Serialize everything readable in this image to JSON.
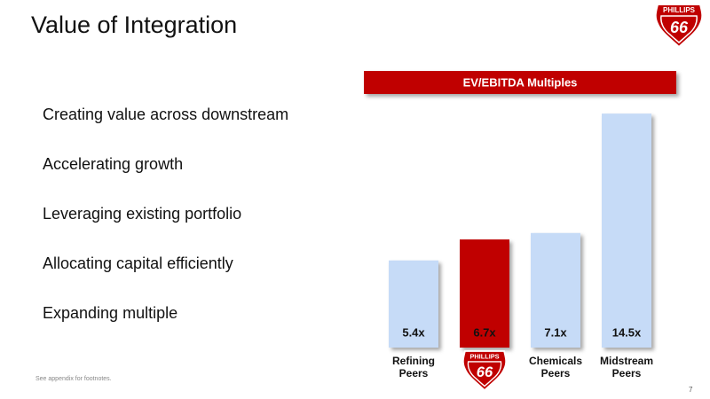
{
  "slide": {
    "title": "Value of Integration",
    "bullets": [
      "Creating value across downstream",
      "Accelerating growth",
      "Leveraging existing portfolio",
      "Allocating capital efficiently",
      "Expanding multiple"
    ],
    "logo": {
      "name": "PHILLIPS",
      "number": "66"
    },
    "footnote": "See appendix for footnotes.",
    "page_number": 7
  },
  "chart_data": {
    "type": "bar",
    "title": "EV/EBITDA Multiples",
    "categories": [
      "Refining Peers",
      null,
      "Chemicals Peers",
      "Midstream Peers"
    ],
    "values": [
      5.4,
      6.7,
      7.1,
      14.5
    ],
    "value_labels": [
      "5.4x",
      "6.7x",
      "7.1x",
      "14.5x"
    ],
    "colors": [
      "#c6dbf7",
      "#c00000",
      "#c6dbf7",
      "#c6dbf7"
    ]
  }
}
